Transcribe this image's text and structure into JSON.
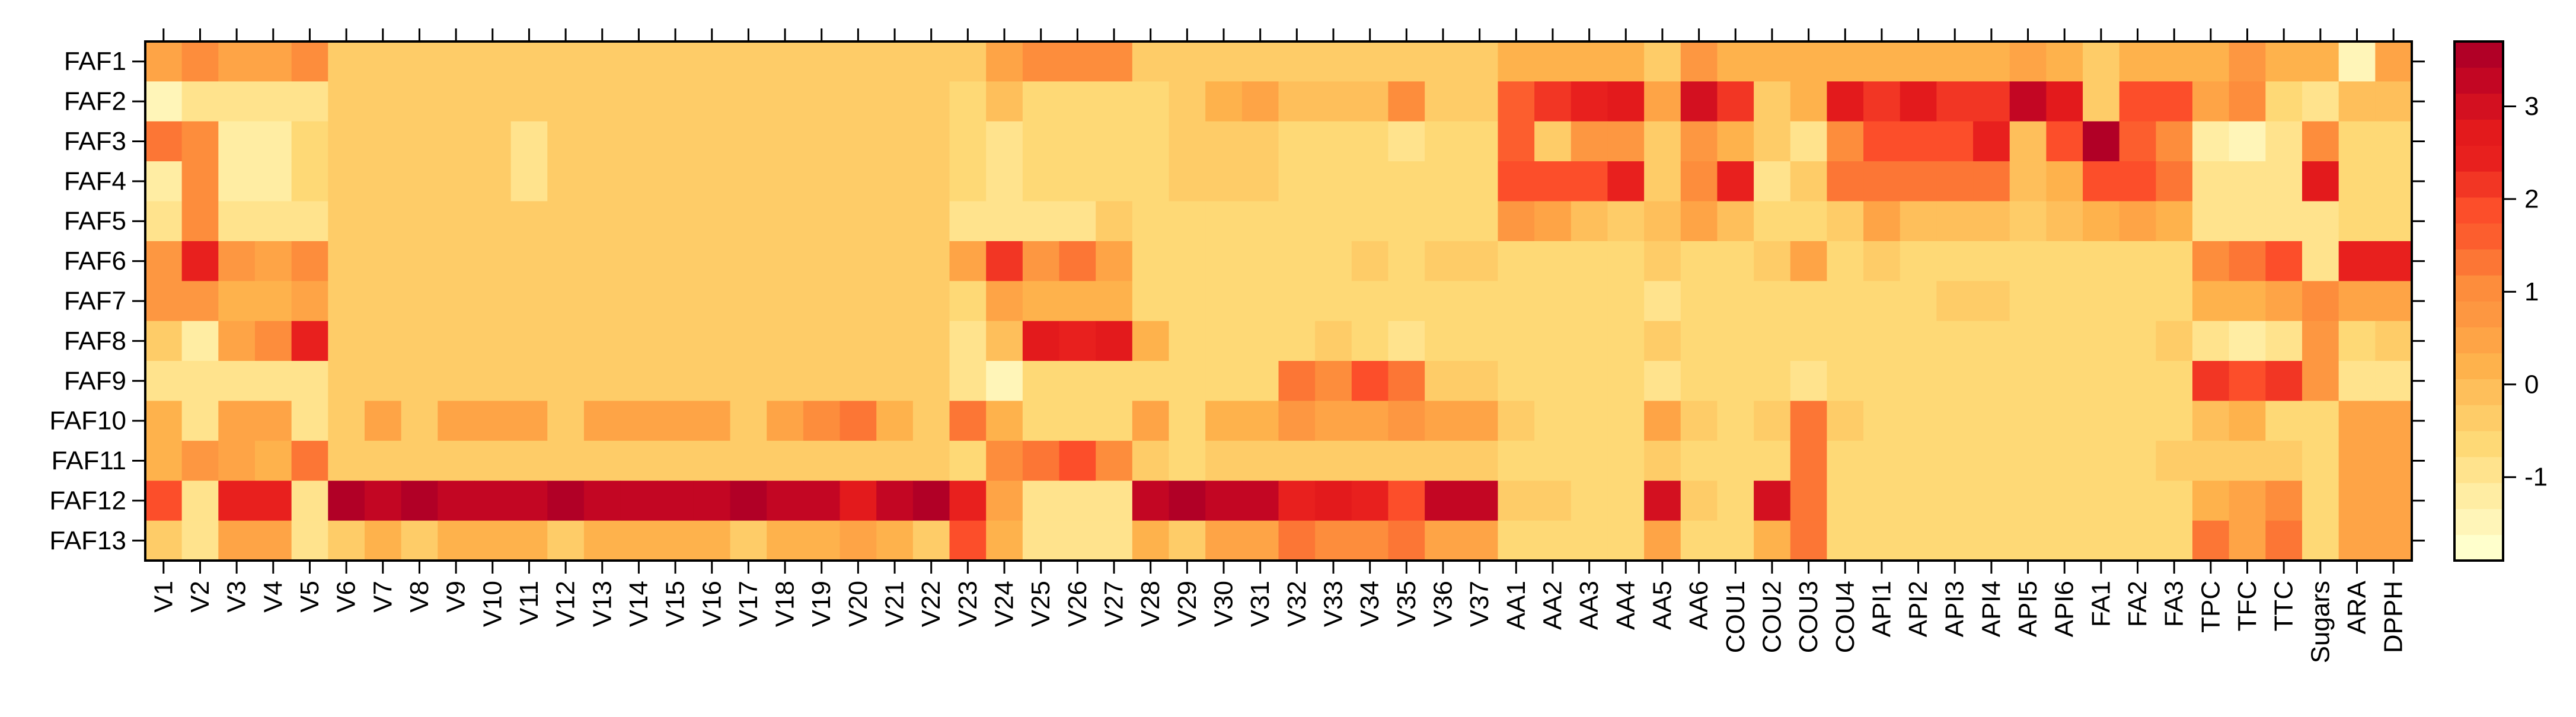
{
  "chart_data": {
    "type": "heatmap",
    "title": "",
    "xlabel": "",
    "ylabel": "",
    "rows": [
      "FAF1",
      "FAF2",
      "FAF3",
      "FAF4",
      "FAF5",
      "FAF6",
      "FAF7",
      "FAF8",
      "FAF9",
      "FAF10",
      "FAF11",
      "FAF12",
      "FAF13"
    ],
    "columns": [
      "V1",
      "V2",
      "V3",
      "V4",
      "V5",
      "V6",
      "V7",
      "V8",
      "V9",
      "V10",
      "V11",
      "V12",
      "V13",
      "V14",
      "V15",
      "V16",
      "V17",
      "V18",
      "V19",
      "V20",
      "V21",
      "V22",
      "V23",
      "V24",
      "V25",
      "V26",
      "V27",
      "V28",
      "V29",
      "V30",
      "V31",
      "V32",
      "V33",
      "V34",
      "V35",
      "V36",
      "V37",
      "AA1",
      "AA2",
      "AA3",
      "AA4",
      "AA5",
      "AA6",
      "COU1",
      "COU2",
      "COU3",
      "COU4",
      "API1",
      "API2",
      "API3",
      "API4",
      "API5",
      "API6",
      "FA1",
      "FA2",
      "FA3",
      "TPC",
      "TFC",
      "TTC",
      "Sugars",
      "ARA",
      "DPPH"
    ],
    "values": [
      [
        0.6,
        1.0,
        0.6,
        0.6,
        1.0,
        -0.5,
        -0.5,
        -0.5,
        -0.5,
        -0.5,
        -0.5,
        -0.5,
        -0.5,
        -0.5,
        -0.5,
        -0.5,
        -0.5,
        -0.5,
        -0.5,
        -0.5,
        -0.5,
        -0.5,
        -0.5,
        0.6,
        1.0,
        1.0,
        1.0,
        -0.5,
        -0.5,
        -0.5,
        -0.5,
        -0.5,
        -0.5,
        -0.5,
        -0.5,
        -0.5,
        -0.5,
        0.3,
        0.3,
        0.3,
        0.3,
        -0.3,
        0.8,
        0.3,
        0.3,
        0.3,
        0.3,
        0.3,
        0.3,
        0.3,
        0.3,
        0.6,
        0.3,
        -0.3,
        0.3,
        0.3,
        0.3,
        0.8,
        0.3,
        0.3,
        -1.5,
        0.6
      ],
      [
        -1.4,
        -0.8,
        -0.8,
        -0.8,
        -0.9,
        -0.5,
        -0.5,
        -0.5,
        -0.5,
        -0.5,
        -0.5,
        -0.5,
        -0.5,
        -0.5,
        -0.5,
        -0.5,
        -0.5,
        -0.5,
        -0.5,
        -0.5,
        -0.5,
        -0.5,
        -0.6,
        0.0,
        -0.7,
        -0.7,
        -0.7,
        -0.7,
        -0.5,
        0.1,
        0.4,
        -0.2,
        -0.2,
        -0.2,
        1.0,
        -0.3,
        -0.3,
        1.6,
        2.2,
        2.5,
        2.8,
        0.6,
        3.0,
        2.2,
        -0.3,
        0.3,
        2.8,
        2.3,
        2.6,
        2.1,
        2.1,
        3.2,
        2.6,
        -0.3,
        1.8,
        1.8,
        0.6,
        1.0,
        -0.6,
        -0.8,
        0.0,
        0.0
      ],
      [
        1.4,
        1.0,
        -1.1,
        -1.1,
        -0.6,
        -0.5,
        -0.5,
        -0.5,
        -0.5,
        -0.5,
        -0.8,
        -0.5,
        -0.5,
        -0.5,
        -0.5,
        -0.5,
        -0.5,
        -0.5,
        -0.5,
        -0.5,
        -0.5,
        -0.5,
        -0.6,
        -1.0,
        -0.7,
        -0.7,
        -0.7,
        -0.7,
        -0.5,
        -0.5,
        -0.5,
        -0.6,
        -0.6,
        -0.6,
        -1.0,
        -0.6,
        -0.6,
        1.6,
        -0.3,
        0.8,
        0.8,
        -0.3,
        0.8,
        0.3,
        -0.3,
        -1.0,
        1.0,
        2.0,
        2.0,
        2.0,
        2.4,
        0.0,
        1.8,
        3.6,
        1.5,
        1.0,
        -1.3,
        -1.6,
        -1.0,
        1.0,
        -0.6,
        -0.6
      ],
      [
        -1.2,
        1.0,
        -1.1,
        -1.1,
        -0.6,
        -0.5,
        -0.5,
        -0.5,
        -0.5,
        -0.5,
        -0.8,
        -0.5,
        -0.5,
        -0.5,
        -0.5,
        -0.5,
        -0.5,
        -0.5,
        -0.5,
        -0.5,
        -0.5,
        -0.5,
        -0.6,
        -1.0,
        -0.7,
        -0.7,
        -0.7,
        -0.7,
        -0.5,
        -0.5,
        -0.5,
        -0.6,
        -0.6,
        -0.6,
        -0.6,
        -0.6,
        -0.6,
        1.8,
        2.0,
        2.0,
        2.4,
        -0.3,
        1.0,
        2.4,
        -1.0,
        -0.3,
        1.2,
        1.4,
        1.4,
        1.4,
        1.4,
        0.0,
        0.3,
        2.0,
        2.0,
        1.4,
        -1.0,
        -1.0,
        -1.0,
        2.6,
        -0.6,
        -0.6
      ],
      [
        -0.8,
        1.0,
        -0.8,
        -0.8,
        -0.8,
        -0.5,
        -0.5,
        -0.5,
        -0.5,
        -0.5,
        -0.5,
        -0.5,
        -0.5,
        -0.5,
        -0.5,
        -0.5,
        -0.5,
        -0.5,
        -0.5,
        -0.5,
        -0.5,
        -0.5,
        -0.8,
        -0.8,
        -0.8,
        -0.8,
        -0.4,
        -0.6,
        -0.6,
        -0.6,
        -0.6,
        -0.6,
        -0.6,
        -0.6,
        -0.6,
        -0.6,
        -0.6,
        0.8,
        0.6,
        0.0,
        -0.3,
        0.0,
        0.6,
        0.0,
        -0.6,
        -0.6,
        -0.3,
        0.6,
        0.0,
        0.0,
        0.0,
        -0.3,
        0.0,
        0.3,
        0.6,
        0.3,
        -1.0,
        -1.0,
        -1.0,
        -1.0,
        -0.6,
        -0.6
      ],
      [
        0.8,
        2.4,
        0.8,
        0.6,
        1.0,
        -0.5,
        -0.5,
        -0.5,
        -0.5,
        -0.5,
        -0.5,
        -0.5,
        -0.5,
        -0.5,
        -0.5,
        -0.5,
        -0.5,
        -0.5,
        -0.5,
        -0.5,
        -0.5,
        -0.5,
        0.6,
        2.2,
        0.8,
        1.2,
        0.4,
        -0.7,
        -0.7,
        -0.7,
        -0.7,
        -0.7,
        -0.7,
        -0.3,
        -0.7,
        -0.3,
        -0.3,
        -0.6,
        -0.6,
        -0.6,
        -0.6,
        -0.3,
        -0.6,
        -0.6,
        -0.3,
        0.6,
        -0.6,
        -0.3,
        -0.6,
        -0.6,
        -0.6,
        -0.6,
        -0.6,
        -0.6,
        -0.6,
        -0.6,
        1.0,
        1.4,
        1.8,
        -0.8,
        2.4,
        2.4
      ],
      [
        0.8,
        0.8,
        0.3,
        0.3,
        0.6,
        -0.5,
        -0.5,
        -0.5,
        -0.5,
        -0.5,
        -0.5,
        -0.5,
        -0.5,
        -0.5,
        -0.5,
        -0.5,
        -0.5,
        -0.5,
        -0.5,
        -0.5,
        -0.5,
        -0.5,
        -0.6,
        0.6,
        0.3,
        0.3,
        0.3,
        -0.7,
        -0.7,
        -0.7,
        -0.7,
        -0.7,
        -0.7,
        -0.7,
        -0.7,
        -0.7,
        -0.7,
        -0.6,
        -0.6,
        -0.6,
        -0.6,
        -1.0,
        -0.6,
        -0.6,
        -0.6,
        -0.6,
        -0.6,
        -0.6,
        -0.6,
        -0.3,
        -0.3,
        -0.6,
        -0.6,
        -0.6,
        -0.6,
        -0.6,
        0.3,
        0.3,
        0.6,
        1.0,
        0.6,
        0.6
      ],
      [
        -0.3,
        -1.2,
        0.6,
        1.0,
        2.4,
        -0.5,
        -0.5,
        -0.5,
        -0.5,
        -0.5,
        -0.5,
        -0.5,
        -0.5,
        -0.5,
        -0.5,
        -0.5,
        -0.5,
        -0.5,
        -0.5,
        -0.5,
        -0.5,
        -0.5,
        -0.9,
        0.0,
        2.6,
        2.4,
        2.8,
        0.3,
        -0.7,
        -0.7,
        -0.7,
        -0.7,
        -0.4,
        -0.7,
        -0.9,
        -0.7,
        -0.7,
        -0.6,
        -0.6,
        -0.6,
        -0.6,
        -0.3,
        -0.6,
        -0.6,
        -0.6,
        -0.6,
        -0.6,
        -0.6,
        -0.6,
        -0.6,
        -0.6,
        -0.6,
        -0.6,
        -0.6,
        -0.6,
        -0.3,
        -1.0,
        -1.3,
        -1.0,
        0.8,
        -0.6,
        -0.3
      ],
      [
        -0.8,
        -0.8,
        -0.8,
        -0.8,
        -0.8,
        -0.5,
        -0.5,
        -0.5,
        -0.5,
        -0.5,
        -0.5,
        -0.5,
        -0.5,
        -0.5,
        -0.5,
        -0.5,
        -0.5,
        -0.5,
        -0.5,
        -0.5,
        -0.5,
        -0.5,
        -0.8,
        -1.6,
        -0.7,
        -0.7,
        -0.7,
        -0.7,
        -0.7,
        -0.7,
        -0.7,
        1.2,
        1.0,
        1.8,
        1.2,
        -0.4,
        -0.4,
        -0.6,
        -0.6,
        -0.6,
        -0.6,
        -1.0,
        -0.6,
        -0.6,
        -0.6,
        -1.0,
        -0.6,
        -0.6,
        -0.6,
        -0.6,
        -0.6,
        -0.6,
        -0.6,
        -0.6,
        -0.6,
        -0.6,
        2.2,
        1.8,
        2.2,
        0.8,
        -1.0,
        -1.0
      ],
      [
        0.3,
        -1.0,
        0.6,
        0.6,
        -0.8,
        -0.5,
        0.6,
        -0.5,
        0.6,
        0.6,
        0.6,
        -0.5,
        0.6,
        0.6,
        0.6,
        0.6,
        -0.5,
        0.6,
        0.9,
        1.2,
        0.3,
        -0.5,
        1.2,
        0.3,
        -0.7,
        -0.7,
        -0.7,
        0.6,
        -0.7,
        0.3,
        0.3,
        0.8,
        0.6,
        0.6,
        0.8,
        0.6,
        0.6,
        -0.3,
        -0.6,
        -0.6,
        -0.6,
        0.6,
        -0.3,
        -0.6,
        -0.3,
        1.2,
        -0.3,
        -0.6,
        -0.6,
        -0.6,
        -0.6,
        -0.6,
        -0.6,
        -0.6,
        -0.6,
        -0.6,
        0.0,
        0.3,
        -0.6,
        -0.6,
        0.6,
        0.6
      ],
      [
        0.3,
        0.8,
        0.6,
        0.3,
        1.4,
        -0.5,
        -0.5,
        -0.5,
        -0.5,
        -0.5,
        -0.5,
        -0.5,
        -0.5,
        -0.5,
        -0.5,
        -0.5,
        -0.5,
        -0.5,
        -0.5,
        -0.5,
        -0.5,
        -0.5,
        -0.7,
        1.0,
        1.4,
        1.8,
        1.0,
        -0.3,
        -0.7,
        -0.3,
        -0.3,
        -0.3,
        -0.3,
        -0.3,
        -0.3,
        -0.3,
        -0.3,
        -0.6,
        -0.6,
        -0.6,
        -0.6,
        -0.3,
        -0.6,
        -0.6,
        -0.6,
        1.2,
        -0.6,
        -0.6,
        -0.6,
        -0.6,
        -0.6,
        -0.6,
        -0.6,
        -0.6,
        -0.6,
        -0.3,
        -0.3,
        -0.3,
        -0.3,
        -0.6,
        0.6,
        0.6
      ],
      [
        2.0,
        -0.8,
        2.4,
        2.4,
        -0.8,
        3.6,
        3.2,
        3.6,
        3.2,
        3.2,
        3.2,
        3.6,
        3.2,
        3.2,
        3.2,
        3.2,
        3.6,
        3.2,
        3.2,
        2.8,
        3.2,
        3.6,
        2.4,
        0.6,
        -0.8,
        -0.8,
        -0.8,
        3.2,
        3.6,
        3.2,
        3.2,
        2.4,
        2.8,
        2.4,
        1.8,
        3.2,
        3.2,
        -0.3,
        -0.3,
        -0.6,
        -0.6,
        3.0,
        -0.3,
        -0.6,
        3.0,
        1.2,
        -0.6,
        -0.6,
        -0.6,
        -0.6,
        -0.6,
        -0.6,
        -0.6,
        -0.6,
        -0.6,
        -0.6,
        0.3,
        0.6,
        1.0,
        -0.6,
        0.6,
        0.6
      ],
      [
        -0.3,
        -1.0,
        0.6,
        0.6,
        -0.8,
        -0.3,
        0.3,
        -0.3,
        0.3,
        0.3,
        0.3,
        -0.3,
        0.3,
        0.3,
        0.3,
        0.3,
        -0.3,
        0.3,
        0.3,
        0.6,
        0.3,
        -0.3,
        1.8,
        0.3,
        -0.8,
        -0.8,
        -0.8,
        0.3,
        -0.3,
        0.6,
        0.6,
        1.4,
        1.0,
        1.0,
        1.2,
        0.6,
        0.6,
        -0.6,
        -0.6,
        -0.6,
        -0.6,
        0.6,
        -0.6,
        -0.6,
        0.3,
        1.2,
        -0.6,
        -0.6,
        -0.6,
        -0.6,
        -0.6,
        -0.6,
        -0.6,
        -0.6,
        -0.6,
        -0.6,
        1.2,
        0.6,
        1.2,
        -0.6,
        0.6,
        0.6
      ]
    ],
    "colorbar": {
      "min": -1.9,
      "max": 3.7,
      "ticks": [
        -1,
        0,
        1,
        2,
        3
      ],
      "tick_labels": [
        "-1",
        "0",
        "1",
        "2",
        "3"
      ],
      "colors": [
        "#FFFFCC",
        "#FFF5B8",
        "#FFEDA3",
        "#FFE38D",
        "#FED976",
        "#FECC68",
        "#FEBF5B",
        "#FEB24C",
        "#FEA446",
        "#FD9741",
        "#FD8D3C",
        "#FC7635",
        "#FC5E2E",
        "#FC4E2A",
        "#F23624",
        "#E8201E",
        "#E31A1C",
        "#D31020",
        "#C30623",
        "#B10026"
      ]
    },
    "legend": "right",
    "grid": false
  }
}
